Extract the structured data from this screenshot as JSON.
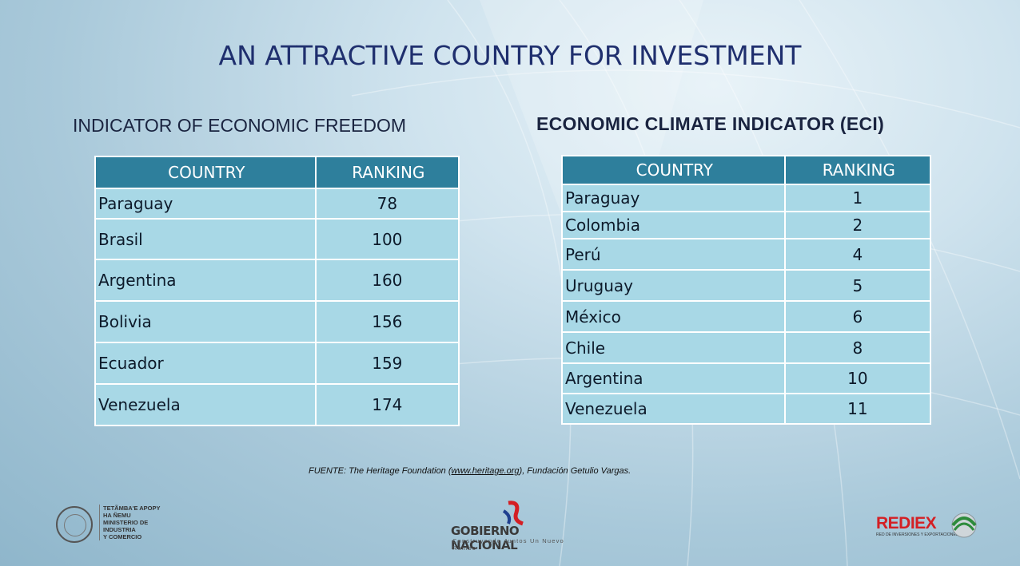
{
  "title": "AN ATTRACTIVE COUNTRY FOR INVESTMENT",
  "left_section": {
    "heading": "INDICATOR OF ECONOMIC FREEDOM",
    "columns": [
      "COUNTRY",
      "RANKING"
    ],
    "rows": [
      {
        "country": "Paraguay",
        "ranking": "78"
      },
      {
        "country": "Brasil",
        "ranking": "100"
      },
      {
        "country": "Argentina",
        "ranking": "160"
      },
      {
        "country": "Bolivia",
        "ranking": "156"
      },
      {
        "country": "Ecuador",
        "ranking": "159"
      },
      {
        "country": "Venezuela",
        "ranking": "174"
      }
    ]
  },
  "right_section": {
    "heading": "ECONOMIC CLIMATE INDICATOR (ECI)",
    "columns": [
      "COUNTRY",
      "RANKING"
    ],
    "rows": [
      {
        "country": "Paraguay",
        "ranking": "1"
      },
      {
        "country": "Colombia",
        "ranking": "2"
      },
      {
        "country": "Perú",
        "ranking": "4"
      },
      {
        "country": "Uruguay",
        "ranking": "5"
      },
      {
        "country": "México",
        "ranking": "6"
      },
      {
        "country": "Chile",
        "ranking": "8"
      },
      {
        "country": "Argentina",
        "ranking": "10"
      },
      {
        "country": "Venezuela",
        "ranking": "11"
      }
    ]
  },
  "source": {
    "prefix": "FUENTE: The Heritage Foundation (",
    "link": "www.heritage.org",
    "suffix": "), Fundación Getulio Vargas."
  },
  "footer": {
    "ministry": "TETÃMBA'E APOPY\nHA ÑEMU\nMINISTERIO DE\nINDUSTRIA\nY COMERCIO",
    "gobierno_name": "GOBIERNO NACIONAL",
    "gobierno_tagline": "Construyendo Juntos Un Nuevo Rumbo",
    "rediex_name": "REDIEX",
    "rediex_tagline": "RED DE INVERSIONES Y EXPORTACIONES"
  },
  "colors": {
    "header_fill": "#2e7f9c",
    "cell_fill": "#a8d8e6",
    "title_color": "#1f2f6e",
    "rediex_red": "#d41f24",
    "flag_red": "#d41f24",
    "flag_blue": "#1f3f8f"
  }
}
